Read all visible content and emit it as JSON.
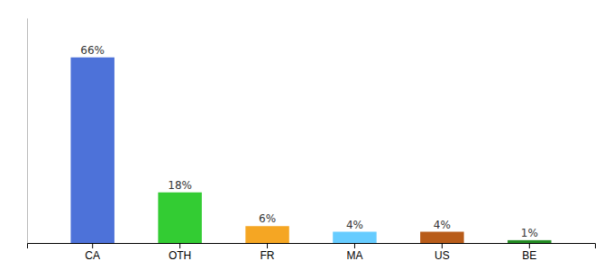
{
  "chart_data": {
    "type": "bar",
    "categories": [
      "CA",
      "OTH",
      "FR",
      "MA",
      "US",
      "BE"
    ],
    "values": [
      66,
      18,
      6,
      4,
      4,
      1
    ],
    "value_labels": [
      "66%",
      "18%",
      "6%",
      "4%",
      "4%",
      "1%"
    ],
    "data_labels": true,
    "colors": [
      "#4d72d9",
      "#33cc33",
      "#f5a623",
      "#66ccff",
      "#b85c1a",
      "#228B22"
    ],
    "ylim": [
      0,
      80
    ],
    "tick_labels": "x"
  }
}
